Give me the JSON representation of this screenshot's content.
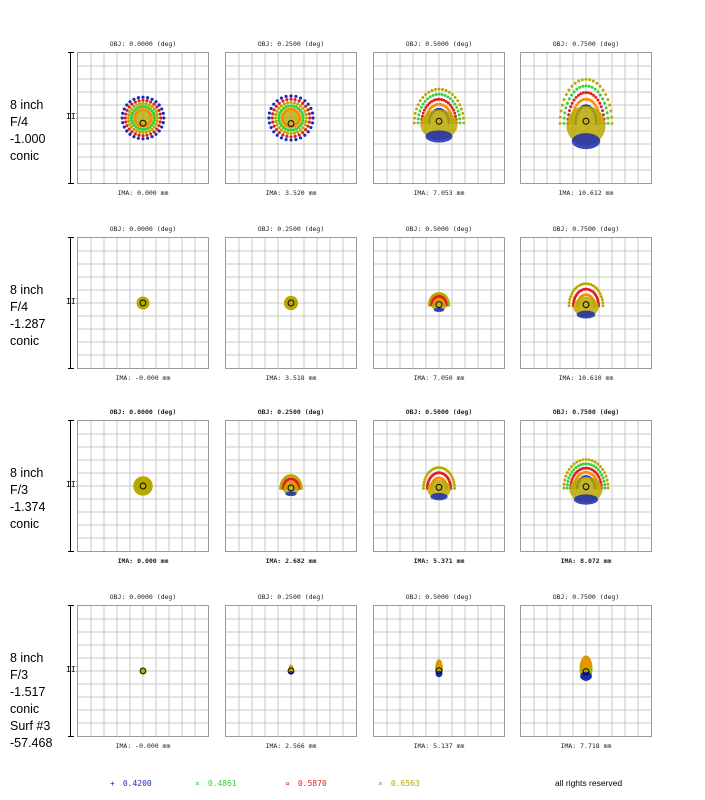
{
  "rows": [
    {
      "label": [
        "8 inch",
        "F/4",
        "-1.000",
        "conic"
      ],
      "bold": false,
      "panels": [
        {
          "obj": "OBJ: 0.0000 (deg)",
          "ima": "IMA: 0.000 mm",
          "spot": {
            "shape": "ring",
            "rx": 0.16,
            "ry": 0.16,
            "dy": 0.0
          }
        },
        {
          "obj": "OBJ: 0.2500 (deg)",
          "ima": "IMA: 3.520 mm",
          "spot": {
            "shape": "ring",
            "rx": 0.17,
            "ry": 0.17,
            "dy": 0.0
          }
        },
        {
          "obj": "OBJ: 0.5000 (deg)",
          "ima": "IMA: 7.053 mm",
          "spot": {
            "shape": "arch",
            "rx": 0.19,
            "ry": 0.26,
            "dy": -0.04
          }
        },
        {
          "obj": "OBJ: 0.7500 (deg)",
          "ima": "IMA: 10.612 mm",
          "spot": {
            "shape": "arch",
            "rx": 0.2,
            "ry": 0.34,
            "dy": -0.06
          }
        }
      ]
    },
    {
      "label": [
        "8 inch",
        "F/4",
        "-1.287",
        "conic"
      ],
      "bold": false,
      "panels": [
        {
          "obj": "OBJ: 0.0000 (deg)",
          "ima": "IMA: -0.000 mm",
          "spot": {
            "shape": "dot",
            "rx": 0.05,
            "ry": 0.05,
            "dy": 0.0
          }
        },
        {
          "obj": "OBJ: 0.2500 (deg)",
          "ima": "IMA: 3.518 mm",
          "spot": {
            "shape": "dot",
            "rx": 0.055,
            "ry": 0.055,
            "dy": 0.0
          }
        },
        {
          "obj": "OBJ: 0.5000 (deg)",
          "ima": "IMA: 7.050 mm",
          "spot": {
            "shape": "coma",
            "rx": 0.075,
            "ry": 0.09,
            "dy": -0.01
          }
        },
        {
          "obj": "OBJ: 0.7500 (deg)",
          "ima": "IMA: 10.610 mm",
          "spot": {
            "shape": "coma",
            "rx": 0.13,
            "ry": 0.17,
            "dy": -0.03
          }
        }
      ]
    },
    {
      "label": [
        "8 inch",
        "F/3",
        "-1.374",
        "conic"
      ],
      "bold": true,
      "panels": [
        {
          "obj": "OBJ: 0.0000 (deg)",
          "ima": "IMA: 0.000 mm",
          "spot": {
            "shape": "dot",
            "rx": 0.075,
            "ry": 0.075,
            "dy": 0.0
          }
        },
        {
          "obj": "OBJ: 0.2500 (deg)",
          "ima": "IMA: 2.682 mm",
          "spot": {
            "shape": "coma",
            "rx": 0.08,
            "ry": 0.1,
            "dy": -0.01
          }
        },
        {
          "obj": "OBJ: 0.5000 (deg)",
          "ima": "IMA: 5.371 mm",
          "spot": {
            "shape": "coma",
            "rx": 0.12,
            "ry": 0.16,
            "dy": -0.03
          }
        },
        {
          "obj": "OBJ: 0.7500 (deg)",
          "ima": "IMA: 8.072 mm",
          "spot": {
            "shape": "arch",
            "rx": 0.17,
            "ry": 0.22,
            "dy": -0.05
          }
        }
      ]
    },
    {
      "label": [
        "8 inch",
        "F/3",
        "-1.517",
        "conic",
        "Surf #3",
        "-57.468"
      ],
      "bold": false,
      "panels": [
        {
          "obj": "OBJ: 0.0000 (deg)",
          "ima": "IMA: -0.000 mm",
          "spot": {
            "shape": "dot",
            "rx": 0.02,
            "ry": 0.02,
            "dy": 0.0
          }
        },
        {
          "obj": "OBJ: 0.2500 (deg)",
          "ima": "IMA: 2.566 mm",
          "spot": {
            "shape": "stick",
            "rx": 0.02,
            "ry": 0.04,
            "dy": -0.01
          }
        },
        {
          "obj": "OBJ: 0.5000 (deg)",
          "ima": "IMA: 5.137 mm",
          "spot": {
            "shape": "stick",
            "rx": 0.03,
            "ry": 0.07,
            "dy": -0.02
          }
        },
        {
          "obj": "OBJ: 0.7500 (deg)",
          "ima": "IMA: 7.718 mm",
          "spot": {
            "shape": "stick",
            "rx": 0.05,
            "ry": 0.1,
            "dy": -0.02
          }
        }
      ]
    }
  ],
  "scalebar_mark": "III",
  "legend": [
    {
      "marker": "+",
      "value": "0.4200",
      "color": "#1a2bb3"
    },
    {
      "marker": "×",
      "value": "0.4861",
      "color": "#3ccf3c"
    },
    {
      "marker": "¤",
      "value": "0.5870",
      "color": "#e02020"
    },
    {
      "marker": "×",
      "value": "0.6563",
      "color": "#b8a800"
    }
  ],
  "footer": "all rights reserved",
  "colors": {
    "blue": "#1a2bb3",
    "green": "#3ccf3c",
    "red": "#e02020",
    "olive": "#b8a800",
    "orange": "#ff8c00",
    "grid": "#c8c8c8"
  },
  "chart_data": {
    "type": "scatter",
    "title": "",
    "series": [
      {
        "name": "0.4200",
        "color": "#1a2bb3"
      },
      {
        "name": "0.4861",
        "color": "#3ccf3c"
      },
      {
        "name": "0.5870",
        "color": "#e02020"
      },
      {
        "name": "0.6563",
        "color": "#b8a800"
      }
    ],
    "field_angles_deg": [
      0.0,
      0.25,
      0.5,
      0.75
    ],
    "grid": true
  }
}
